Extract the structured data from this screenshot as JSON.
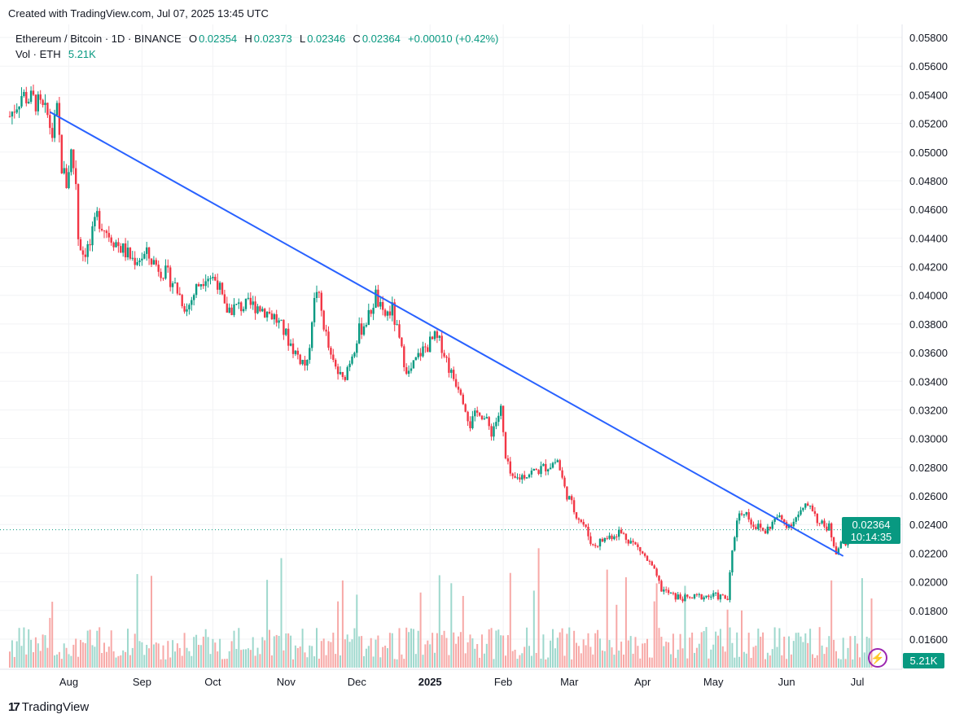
{
  "header": {
    "created_text": "Created with TradingView.com, Jul 07, 2025 13:45 UTC"
  },
  "legend": {
    "symbol": "Ethereum / Bitcoin · 1D · BINANCE",
    "o_label": "O",
    "o": "0.02354",
    "h_label": "H",
    "h": "0.02373",
    "l_label": "L",
    "l": "0.02346",
    "c_label": "C",
    "c": "0.02364",
    "change": "+0.00010 (+0.42%)",
    "vol_label": "Vol · ETH",
    "vol": "5.21K"
  },
  "price_label": {
    "price": "0.02364",
    "countdown": "10:14:35"
  },
  "volume_label": "5.21K",
  "footer": {
    "logo_text": "TradingView"
  },
  "colors": {
    "up": "#089981",
    "down": "#f23645",
    "trendline": "#2962ff",
    "accent": "#9c27b0"
  },
  "chart_data": {
    "type": "candlestick",
    "interval": "1D",
    "x_range": [
      "2024-07-07",
      "2025-07-07"
    ],
    "ylim": [
      0.015,
      0.059
    ],
    "y_ticks": [
      "0.05800",
      "0.05600",
      "0.05400",
      "0.05200",
      "0.05000",
      "0.04800",
      "0.04600",
      "0.04400",
      "0.04200",
      "0.04000",
      "0.03800",
      "0.03600",
      "0.03400",
      "0.03200",
      "0.03000",
      "0.02800",
      "0.02600",
      "0.02400",
      "0.02200",
      "0.02000",
      "0.01800",
      "0.01600"
    ],
    "x_ticks": [
      {
        "label": "Aug",
        "date": "2024-08-01"
      },
      {
        "label": "Sep",
        "date": "2024-09-01"
      },
      {
        "label": "Oct",
        "date": "2024-10-01"
      },
      {
        "label": "Nov",
        "date": "2024-11-01"
      },
      {
        "label": "Dec",
        "date": "2024-12-01"
      },
      {
        "label": "2025",
        "date": "2025-01-01",
        "bold": true
      },
      {
        "label": "Feb",
        "date": "2025-02-01"
      },
      {
        "label": "Mar",
        "date": "2025-03-01"
      },
      {
        "label": "Apr",
        "date": "2025-04-01"
      },
      {
        "label": "May",
        "date": "2025-05-01"
      },
      {
        "label": "Jun",
        "date": "2025-06-01"
      },
      {
        "label": "Jul",
        "date": "2025-07-01"
      }
    ],
    "approx_closes": [
      [
        "2024-07-07",
        0.0525
      ],
      [
        "2024-07-12",
        0.054
      ],
      [
        "2024-07-18",
        0.0535
      ],
      [
        "2024-07-23",
        0.0525
      ],
      [
        "2024-07-25",
        0.0512
      ],
      [
        "2024-07-27",
        0.0528
      ],
      [
        "2024-07-29",
        0.049
      ],
      [
        "2024-07-31",
        0.0478
      ],
      [
        "2024-08-02",
        0.05
      ],
      [
        "2024-08-04",
        0.048
      ],
      [
        "2024-08-05",
        0.0441
      ],
      [
        "2024-08-07",
        0.043
      ],
      [
        "2024-08-10",
        0.0435
      ],
      [
        "2024-08-13",
        0.0455
      ],
      [
        "2024-08-17",
        0.0445
      ],
      [
        "2024-08-22",
        0.0435
      ],
      [
        "2024-08-28",
        0.0425
      ],
      [
        "2024-09-03",
        0.0428
      ],
      [
        "2024-09-08",
        0.042
      ],
      [
        "2024-09-14",
        0.041
      ],
      [
        "2024-09-20",
        0.039
      ],
      [
        "2024-09-24",
        0.0405
      ],
      [
        "2024-09-28",
        0.0415
      ],
      [
        "2024-10-03",
        0.041
      ],
      [
        "2024-10-06",
        0.039
      ],
      [
        "2024-10-12",
        0.0392
      ],
      [
        "2024-10-20",
        0.0393
      ],
      [
        "2024-10-27",
        0.0385
      ],
      [
        "2024-10-31",
        0.0375
      ],
      [
        "2024-11-05",
        0.036
      ],
      [
        "2024-11-10",
        0.035
      ],
      [
        "2024-11-12",
        0.0385
      ],
      [
        "2024-11-14",
        0.0405
      ],
      [
        "2024-11-17",
        0.038
      ],
      [
        "2024-11-20",
        0.0355
      ],
      [
        "2024-11-25",
        0.034
      ],
      [
        "2024-11-27",
        0.035
      ],
      [
        "2024-12-02",
        0.0375
      ],
      [
        "2024-12-06",
        0.0385
      ],
      [
        "2024-12-09",
        0.04
      ],
      [
        "2024-12-12",
        0.0385
      ],
      [
        "2024-12-16",
        0.039
      ],
      [
        "2024-12-20",
        0.036
      ],
      [
        "2024-12-23",
        0.0345
      ],
      [
        "2024-12-28",
        0.036
      ],
      [
        "2025-01-03",
        0.037
      ],
      [
        "2025-01-06",
        0.0365
      ],
      [
        "2025-01-10",
        0.0345
      ],
      [
        "2025-01-14",
        0.0335
      ],
      [
        "2025-01-18",
        0.031
      ],
      [
        "2025-01-22",
        0.032
      ],
      [
        "2025-01-27",
        0.0305
      ],
      [
        "2025-01-31",
        0.032
      ],
      [
        "2025-02-02",
        0.0285
      ],
      [
        "2025-02-05",
        0.027
      ],
      [
        "2025-02-10",
        0.0275
      ],
      [
        "2025-02-16",
        0.0278
      ],
      [
        "2025-02-21",
        0.0282
      ],
      [
        "2025-02-24",
        0.0285
      ],
      [
        "2025-02-27",
        0.0265
      ],
      [
        "2025-03-03",
        0.025
      ],
      [
        "2025-03-07",
        0.024
      ],
      [
        "2025-03-11",
        0.0225
      ],
      [
        "2025-03-16",
        0.023
      ],
      [
        "2025-03-22",
        0.0235
      ],
      [
        "2025-03-26",
        0.023
      ],
      [
        "2025-03-31",
        0.0222
      ],
      [
        "2025-04-05",
        0.021
      ],
      [
        "2025-04-09",
        0.0195
      ],
      [
        "2025-04-14",
        0.019
      ],
      [
        "2025-04-20",
        0.0188
      ],
      [
        "2025-04-26",
        0.019
      ],
      [
        "2025-05-03",
        0.019
      ],
      [
        "2025-05-07",
        0.0188
      ],
      [
        "2025-05-09",
        0.022
      ],
      [
        "2025-05-11",
        0.0245
      ],
      [
        "2025-05-14",
        0.025
      ],
      [
        "2025-05-18",
        0.024
      ],
      [
        "2025-05-23",
        0.0235
      ],
      [
        "2025-05-28",
        0.0245
      ],
      [
        "2025-06-02",
        0.024
      ],
      [
        "2025-06-07",
        0.0248
      ],
      [
        "2025-06-11",
        0.0255
      ],
      [
        "2025-06-15",
        0.024
      ],
      [
        "2025-06-19",
        0.0238
      ],
      [
        "2025-06-22",
        0.0222
      ],
      [
        "2025-06-25",
        0.0228
      ],
      [
        "2025-07-01",
        0.0232
      ],
      [
        "2025-07-07",
        0.02364
      ]
    ],
    "trendline": [
      [
        "2024-07-24",
        0.0528
      ],
      [
        "2025-06-25",
        0.0218
      ]
    ],
    "last_price": 0.02364
  }
}
